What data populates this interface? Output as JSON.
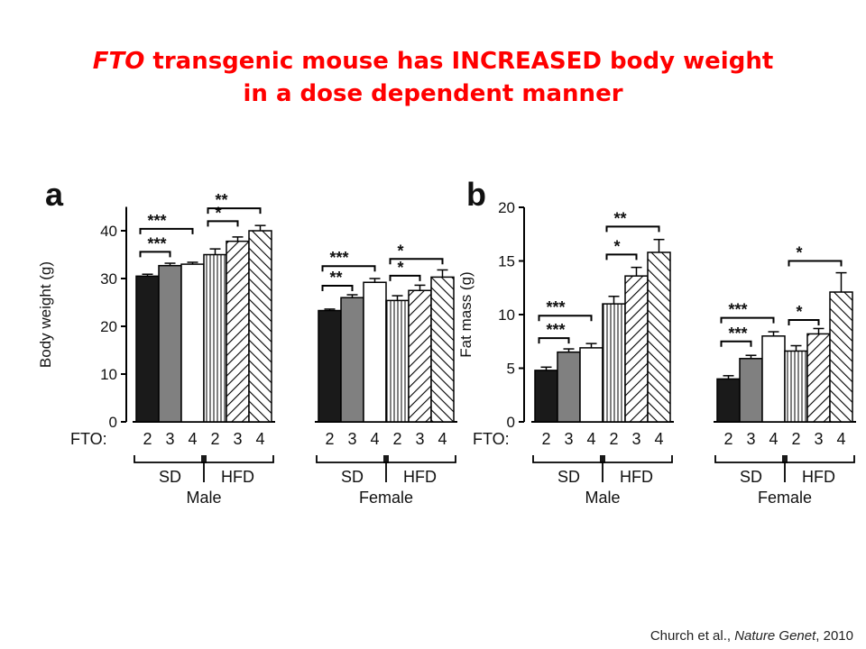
{
  "title": {
    "gene": "FTO",
    "line1_rest": " transgenic mouse has INCREASED body weight",
    "line2": "in a dose dependent manner"
  },
  "citation": {
    "authors": "Church et al., ",
    "journal": "Nature Genet",
    "year": ", 2010"
  },
  "colors": {
    "title": "#ff0000",
    "dose2": "#1a1a1a",
    "dose3": "#808080",
    "dose4": "#ffffff"
  },
  "chart_data": [
    {
      "type": "bar",
      "panel_label": "a",
      "ylabel": "Body weight (g)",
      "ylim": [
        0,
        45
      ],
      "yticks": [
        0,
        10,
        20,
        30,
        40
      ],
      "x_row_label": "FTO:",
      "categories": [
        "2",
        "3",
        "4",
        "2",
        "3",
        "4",
        "2",
        "3",
        "4",
        "2",
        "3",
        "4"
      ],
      "diet": [
        "SD",
        "SD",
        "SD",
        "HFD",
        "HFD",
        "HFD",
        "SD",
        "SD",
        "SD",
        "HFD",
        "HFD",
        "HFD"
      ],
      "sex": [
        "Male",
        "Male",
        "Male",
        "Male",
        "Male",
        "Male",
        "Female",
        "Female",
        "Female",
        "Female",
        "Female",
        "Female"
      ],
      "values": [
        30.5,
        32.7,
        33.0,
        35.0,
        37.8,
        40.0,
        23.3,
        26.0,
        29.2,
        25.4,
        27.5,
        30.3
      ],
      "errors": [
        0.4,
        0.5,
        0.4,
        1.2,
        0.9,
        1.1,
        0.3,
        0.6,
        0.8,
        1.0,
        1.1,
        1.5
      ],
      "groups": [
        "SD",
        "HFD",
        "SD",
        "HFD"
      ],
      "sexes": [
        "Male",
        "Female"
      ],
      "significance": [
        {
          "from": 0,
          "to": 1,
          "label": "***",
          "y": 35.6
        },
        {
          "from": 0,
          "to": 2,
          "label": "***",
          "y": 40.4
        },
        {
          "from": 3,
          "to": 4,
          "label": "*",
          "y": 42.0
        },
        {
          "from": 3,
          "to": 5,
          "label": "**",
          "y": 44.7
        },
        {
          "from": 6,
          "to": 7,
          "label": "**",
          "y": 28.5
        },
        {
          "from": 6,
          "to": 8,
          "label": "***",
          "y": 32.6
        },
        {
          "from": 9,
          "to": 10,
          "label": "*",
          "y": 30.6
        },
        {
          "from": 9,
          "to": 11,
          "label": "*",
          "y": 34.1
        }
      ]
    },
    {
      "type": "bar",
      "panel_label": "b",
      "ylabel": "Fat mass (g)",
      "ylim": [
        0,
        20
      ],
      "yticks": [
        0,
        5,
        10,
        15,
        20
      ],
      "x_row_label": "FTO:",
      "categories": [
        "2",
        "3",
        "4",
        "2",
        "3",
        "4",
        "2",
        "3",
        "4",
        "2",
        "3",
        "4"
      ],
      "diet": [
        "SD",
        "SD",
        "SD",
        "HFD",
        "HFD",
        "HFD",
        "SD",
        "SD",
        "SD",
        "HFD",
        "HFD",
        "HFD"
      ],
      "sex": [
        "Male",
        "Male",
        "Male",
        "Male",
        "Male",
        "Male",
        "Female",
        "Female",
        "Female",
        "Female",
        "Female",
        "Female"
      ],
      "values": [
        4.8,
        6.5,
        6.9,
        11.0,
        13.6,
        15.8,
        4.0,
        5.9,
        8.0,
        6.6,
        8.2,
        12.1
      ],
      "errors": [
        0.3,
        0.3,
        0.4,
        0.7,
        0.8,
        1.2,
        0.3,
        0.3,
        0.4,
        0.5,
        0.5,
        1.8
      ],
      "groups": [
        "SD",
        "HFD",
        "SD",
        "HFD"
      ],
      "sexes": [
        "Male",
        "Female"
      ],
      "significance": [
        {
          "from": 0,
          "to": 1,
          "label": "***",
          "y": 7.8
        },
        {
          "from": 0,
          "to": 2,
          "label": "***",
          "y": 9.9
        },
        {
          "from": 3,
          "to": 4,
          "label": "*",
          "y": 15.6
        },
        {
          "from": 3,
          "to": 5,
          "label": "**",
          "y": 18.2
        },
        {
          "from": 6,
          "to": 7,
          "label": "***",
          "y": 7.5
        },
        {
          "from": 6,
          "to": 8,
          "label": "***",
          "y": 9.7
        },
        {
          "from": 9,
          "to": 10,
          "label": "*",
          "y": 9.5
        },
        {
          "from": 9,
          "to": 11,
          "label": "*",
          "y": 15.0
        }
      ]
    }
  ]
}
